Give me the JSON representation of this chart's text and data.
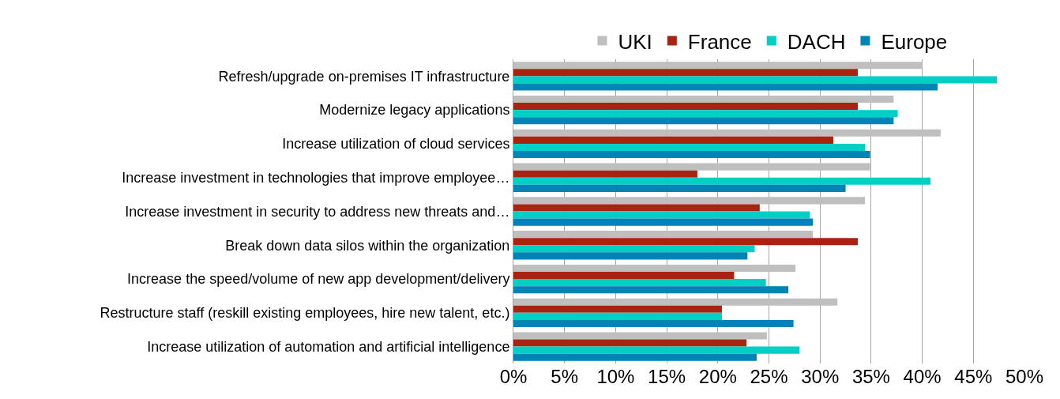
{
  "chart_data": {
    "type": "bar",
    "orientation": "horizontal",
    "categories": [
      "Refresh/upgrade on-premises IT infrastructure",
      "Modernize legacy applications",
      "Increase utilization of cloud services",
      "Increase investment in technologies that improve employee…",
      "Increase investment in security to address new threats and…",
      "Break down data silos within the organization",
      "Increase the speed/volume of new app development/delivery",
      "Restructure staff (reskill existing employees, hire new talent, etc.)",
      "Increase utilization of automation and artificial intelligence"
    ],
    "series": [
      {
        "name": "UKI",
        "color": "#bfbfbf",
        "values": [
          40.0,
          37.2,
          41.8,
          34.9,
          34.4,
          29.3,
          27.6,
          31.7,
          24.8
        ]
      },
      {
        "name": "France",
        "color": "#a82410",
        "values": [
          33.7,
          33.7,
          31.3,
          18.0,
          24.1,
          33.7,
          21.6,
          20.4,
          22.8
        ]
      },
      {
        "name": "DACH",
        "color": "#00cfc6",
        "values": [
          47.3,
          37.6,
          34.4,
          40.8,
          29.0,
          23.6,
          24.7,
          20.4,
          28.0
        ]
      },
      {
        "name": "Europe",
        "color": "#0083b5",
        "values": [
          41.5,
          37.2,
          34.9,
          32.5,
          29.3,
          22.9,
          26.9,
          27.4,
          23.8
        ]
      }
    ],
    "xlim": [
      0,
      50
    ],
    "xticks": [
      {
        "value": 0,
        "label": "0%"
      },
      {
        "value": 5,
        "label": "5%"
      },
      {
        "value": 10,
        "label": "10%"
      },
      {
        "value": 15,
        "label": "15%"
      },
      {
        "value": 20,
        "label": "20%"
      },
      {
        "value": 25,
        "label": "25%"
      },
      {
        "value": 30,
        "label": "30%"
      },
      {
        "value": 35,
        "label": "35%"
      },
      {
        "value": 40,
        "label": "40%"
      },
      {
        "value": 45,
        "label": "45%"
      },
      {
        "value": 50,
        "label": "50%"
      }
    ],
    "grid": "x",
    "legend": "top"
  }
}
